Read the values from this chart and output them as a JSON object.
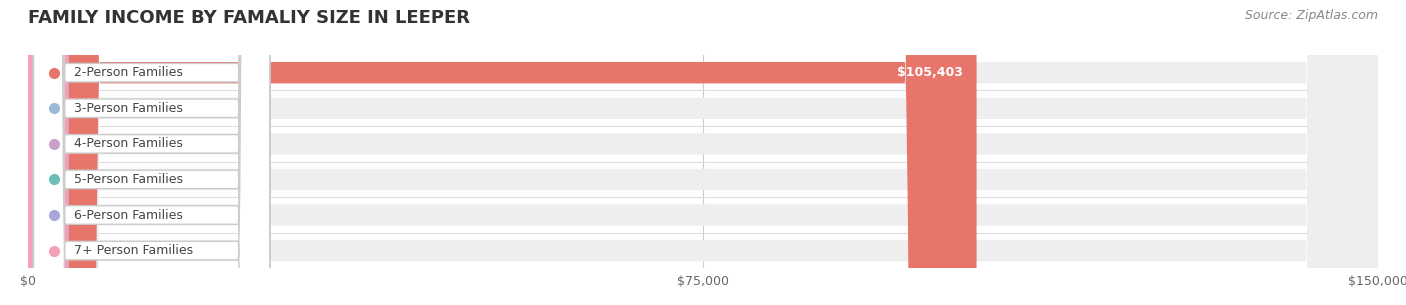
{
  "title": "FAMILY INCOME BY FAMALIY SIZE IN LEEPER",
  "source": "Source: ZipAtlas.com",
  "categories": [
    "2-Person Families",
    "3-Person Families",
    "4-Person Families",
    "5-Person Families",
    "6-Person Families",
    "7+ Person Families"
  ],
  "values": [
    105403,
    0,
    0,
    0,
    0,
    0
  ],
  "bar_colors": [
    "#e8756a",
    "#9bb8d4",
    "#c9a0c8",
    "#6dbfb8",
    "#a8a8d8",
    "#f4a0b8"
  ],
  "label_colors": [
    "#e8756a",
    "#9bb8d4",
    "#c9a0c8",
    "#6dbfb8",
    "#a8a8d8",
    "#f4a0b8"
  ],
  "xlim": [
    0,
    150000
  ],
  "xticks": [
    0,
    75000,
    150000
  ],
  "xtick_labels": [
    "$0",
    "$75,000",
    "$150,000"
  ],
  "background_color": "#ffffff",
  "bar_bg_color": "#eeeeee",
  "title_fontsize": 13,
  "source_fontsize": 9,
  "label_fontsize": 9,
  "value_fontsize": 9,
  "bar_height": 0.6
}
